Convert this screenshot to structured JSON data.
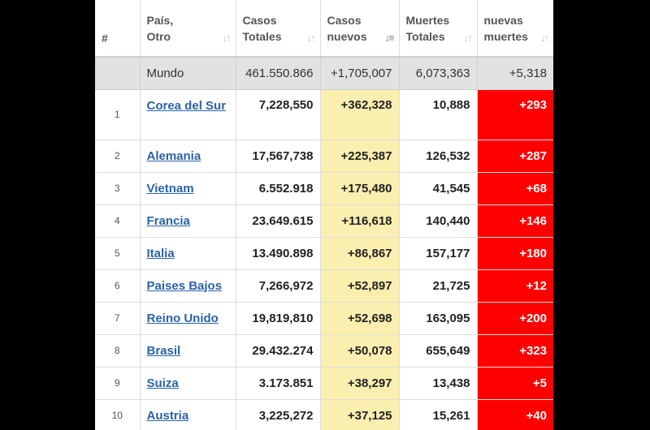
{
  "table": {
    "headers": {
      "idx": "#",
      "country_l1": "País,",
      "country_l2": "Otro",
      "total_l1": "Casos",
      "total_l2": "Totales",
      "new_l1": "Casos",
      "new_l2": "nuevos",
      "deaths_l1": "Muertes",
      "deaths_l2": "Totales",
      "newd_l1": "nuevas",
      "newd_l2": "muertes"
    },
    "sort_icons": {
      "inactive": "sort-arrows-icon",
      "active": "sort-descending-icon"
    },
    "world": {
      "label": "Mundo",
      "total": "461.550.866",
      "new": "+1,705,007",
      "deaths": "6,073,363",
      "new_deaths": "+5,318"
    },
    "rows": [
      {
        "idx": "1",
        "country": "Corea del Sur",
        "total": "7,228,550",
        "new": "+362,328",
        "deaths": "10,888",
        "new_deaths": "+293"
      },
      {
        "idx": "2",
        "country": "Alemania",
        "total": "17,567,738",
        "new": "+225,387",
        "deaths": "126,532",
        "new_deaths": "+287"
      },
      {
        "idx": "3",
        "country": "Vietnam",
        "total": "6.552.918",
        "new": "+175,480",
        "deaths": "41,545",
        "new_deaths": "+68"
      },
      {
        "idx": "4",
        "country": "Francia",
        "total": "23.649.615",
        "new": "+116,618",
        "deaths": "140,440",
        "new_deaths": "+146"
      },
      {
        "idx": "5",
        "country": "Italia",
        "total": "13.490.898",
        "new": "+86,867",
        "deaths": "157,177",
        "new_deaths": "+180"
      },
      {
        "idx": "6",
        "country": "Paises Bajos",
        "total": "7,266,972",
        "new": "+52,897",
        "deaths": "21,725",
        "new_deaths": "+12"
      },
      {
        "idx": "7",
        "country": "Reino Unido",
        "total": "19,819,810",
        "new": "+52,698",
        "deaths": "163,095",
        "new_deaths": "+200"
      },
      {
        "idx": "8",
        "country": "Brasil",
        "total": "29.432.274",
        "new": "+50,078",
        "deaths": "655,649",
        "new_deaths": "+323"
      },
      {
        "idx": "9",
        "country": "Suiza",
        "total": "3.173.851",
        "new": "+38,297",
        "deaths": "13,438",
        "new_deaths": "+5"
      },
      {
        "idx": "10",
        "country": "Austria",
        "total": "3,225,272",
        "new": "+37,125",
        "deaths": "15,261",
        "new_deaths": "+40"
      }
    ]
  },
  "colors": {
    "background": "#000000",
    "header_text": "#555555",
    "world_row": "#e2e2e2",
    "new_cases_highlight": "#fbefb0",
    "new_deaths_highlight": "#ff0000",
    "link": "#2a63a7"
  }
}
